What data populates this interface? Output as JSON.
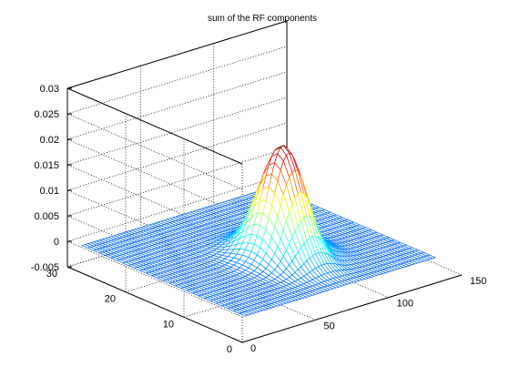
{
  "chart_data": {
    "type": "surface",
    "title": "sum of the RF components",
    "xlabel": "",
    "ylabel": "",
    "zlabel": "",
    "xlim": [
      0,
      150
    ],
    "ylim": [
      0,
      30
    ],
    "zlim": [
      -0.005,
      0.03
    ],
    "x_ticks": [
      "0",
      "50",
      "100",
      "150"
    ],
    "y_ticks": [
      "0",
      "10",
      "20",
      "30"
    ],
    "z_ticks": [
      "-0.005",
      "0",
      "0.005",
      "0.01",
      "0.015",
      "0.02",
      "0.025",
      "0.03"
    ],
    "grid": true,
    "x_extent": [
      2,
      132
    ],
    "y_extent": [
      0,
      28
    ],
    "peak": {
      "x": 72,
      "y": 11,
      "z": 0.022
    },
    "peak_width_x": 11,
    "peak_width_y": 3.2,
    "trough": {
      "x": 85,
      "z": -0.0035
    },
    "colormap": "jet"
  }
}
